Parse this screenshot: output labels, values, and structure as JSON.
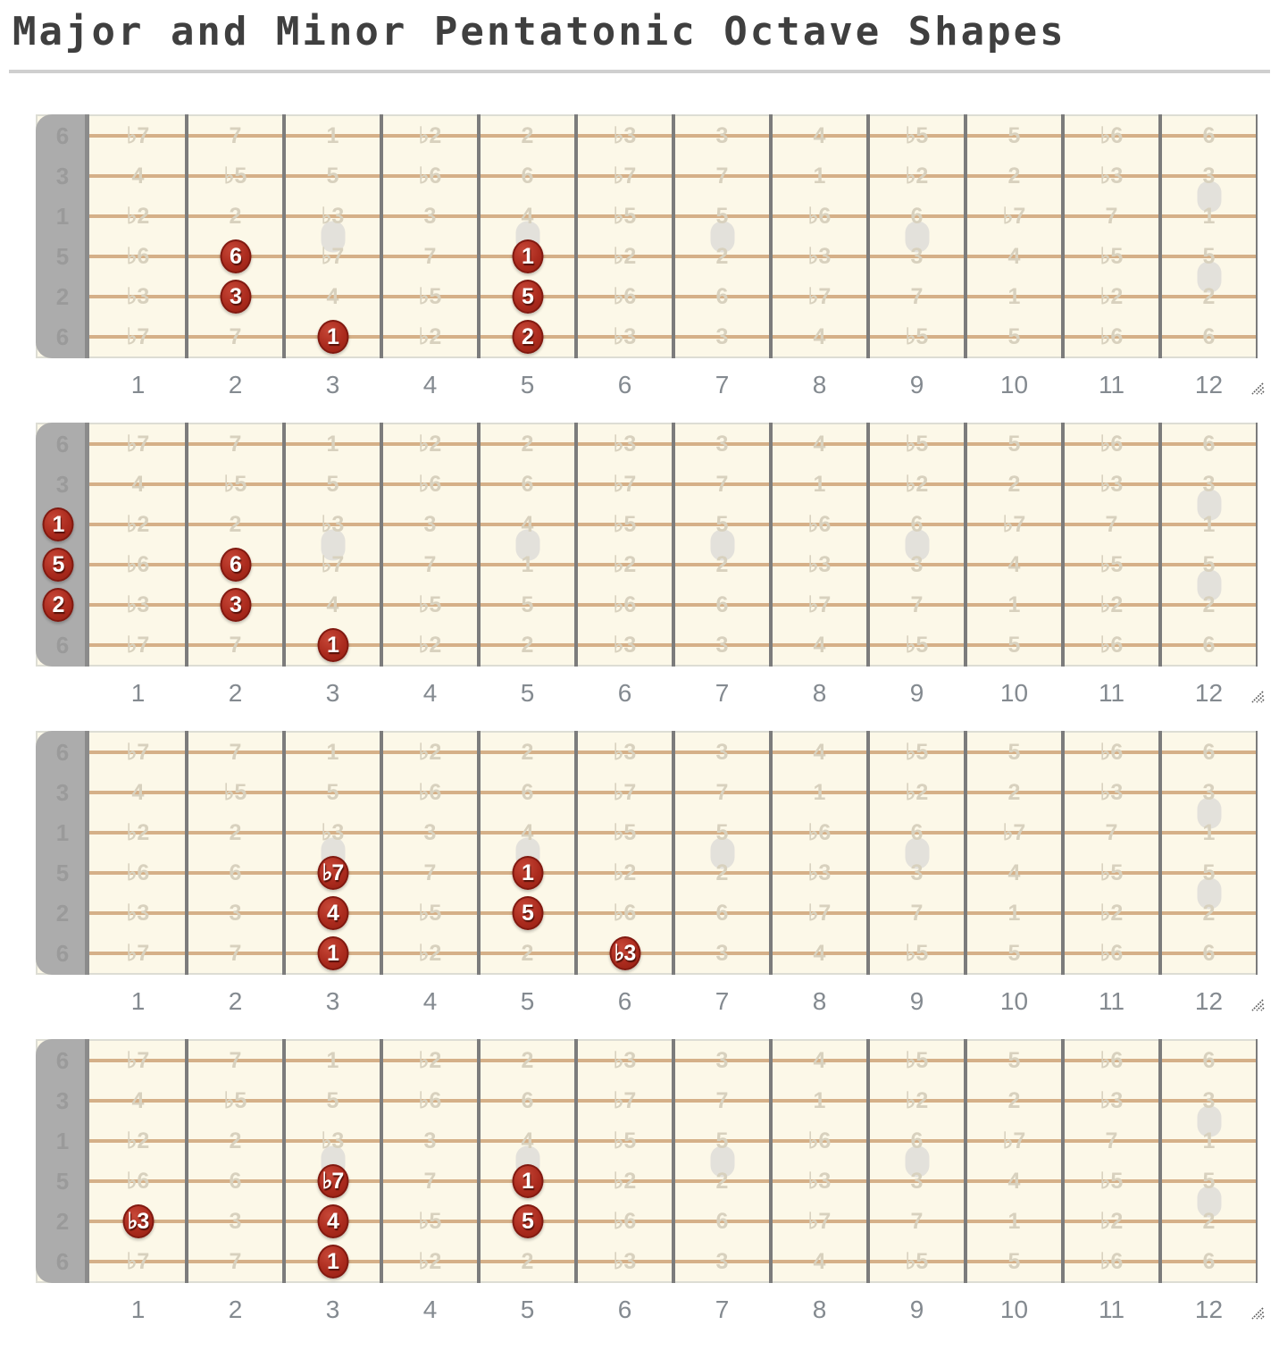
{
  "title": "Major and Minor Pentatonic Octave Shapes",
  "colors": {
    "title_text": "#3F3F3F",
    "divider": "#CFCFCF",
    "board_bg": "#FCF8E8",
    "board_frame": "#DDDDD4",
    "nut": "#ACACAC",
    "nut_edge": "#8B8B8B",
    "nut_label": "#9A9A9A",
    "fret_wire": "#7C7C7C",
    "string": "#D5B088",
    "faint_label": "#D8D1BE",
    "marker": "#E3E1DB",
    "dot_fill": "#AB2B1E",
    "dot_hi": "#C64737",
    "dot_lo": "#951F12",
    "dot_border": "#801910",
    "dot_text": "#FFFFFF",
    "fret_number": "#848A90"
  },
  "icons": {
    "resize_grip": "diagonal-resize-grip-icon"
  },
  "string_labels": [
    "6",
    "3",
    "1",
    "5",
    "2",
    "6"
  ],
  "fret_numbers": [
    "1",
    "2",
    "3",
    "4",
    "5",
    "6",
    "7",
    "8",
    "9",
    "10",
    "11",
    "12"
  ],
  "inlay_markers": {
    "single_frets": [
      3,
      5,
      7,
      9
    ],
    "double_frets": [
      12
    ]
  },
  "interval_grid": [
    [
      "♭7",
      "7",
      "1",
      "♭2",
      "2",
      "♭3",
      "3",
      "4",
      "♭5",
      "5",
      "♭6",
      "6"
    ],
    [
      "4",
      "♭5",
      "5",
      "♭6",
      "6",
      "♭7",
      "7",
      "1",
      "♭2",
      "2",
      "♭3",
      "3"
    ],
    [
      "♭2",
      "2",
      "♭3",
      "3",
      "4",
      "♭5",
      "5",
      "♭6",
      "6",
      "♭7",
      "7",
      "1"
    ],
    [
      "♭6",
      "6",
      "♭7",
      "7",
      "1",
      "♭2",
      "2",
      "♭3",
      "3",
      "4",
      "♭5",
      "5"
    ],
    [
      "♭3",
      "3",
      "4",
      "♭5",
      "5",
      "♭6",
      "6",
      "♭7",
      "7",
      "1",
      "♭2",
      "2"
    ],
    [
      "♭7",
      "7",
      "1",
      "♭2",
      "2",
      "♭3",
      "3",
      "4",
      "♭5",
      "5",
      "♭6",
      "6"
    ]
  ],
  "fretboards": [
    {
      "id": "fretboard-1",
      "dots": [
        {
          "string": 4,
          "fret": 2,
          "label": "6"
        },
        {
          "string": 5,
          "fret": 2,
          "label": "3"
        },
        {
          "string": 6,
          "fret": 3,
          "label": "1"
        },
        {
          "string": 4,
          "fret": 5,
          "label": "1"
        },
        {
          "string": 5,
          "fret": 5,
          "label": "5"
        },
        {
          "string": 6,
          "fret": 5,
          "label": "2"
        }
      ]
    },
    {
      "id": "fretboard-2",
      "dots": [
        {
          "string": 3,
          "fret": 0,
          "label": "1"
        },
        {
          "string": 4,
          "fret": 0,
          "label": "5"
        },
        {
          "string": 5,
          "fret": 0,
          "label": "2"
        },
        {
          "string": 4,
          "fret": 2,
          "label": "6"
        },
        {
          "string": 5,
          "fret": 2,
          "label": "3"
        },
        {
          "string": 6,
          "fret": 3,
          "label": "1"
        }
      ]
    },
    {
      "id": "fretboard-3",
      "dots": [
        {
          "string": 4,
          "fret": 3,
          "label": "♭7"
        },
        {
          "string": 5,
          "fret": 3,
          "label": "4"
        },
        {
          "string": 6,
          "fret": 3,
          "label": "1"
        },
        {
          "string": 4,
          "fret": 5,
          "label": "1"
        },
        {
          "string": 5,
          "fret": 5,
          "label": "5"
        },
        {
          "string": 6,
          "fret": 6,
          "label": "♭3"
        }
      ]
    },
    {
      "id": "fretboard-4",
      "dots": [
        {
          "string": 5,
          "fret": 1,
          "label": "♭3"
        },
        {
          "string": 4,
          "fret": 3,
          "label": "♭7"
        },
        {
          "string": 5,
          "fret": 3,
          "label": "4"
        },
        {
          "string": 6,
          "fret": 3,
          "label": "1"
        },
        {
          "string": 4,
          "fret": 5,
          "label": "1"
        },
        {
          "string": 5,
          "fret": 5,
          "label": "5"
        }
      ]
    }
  ]
}
